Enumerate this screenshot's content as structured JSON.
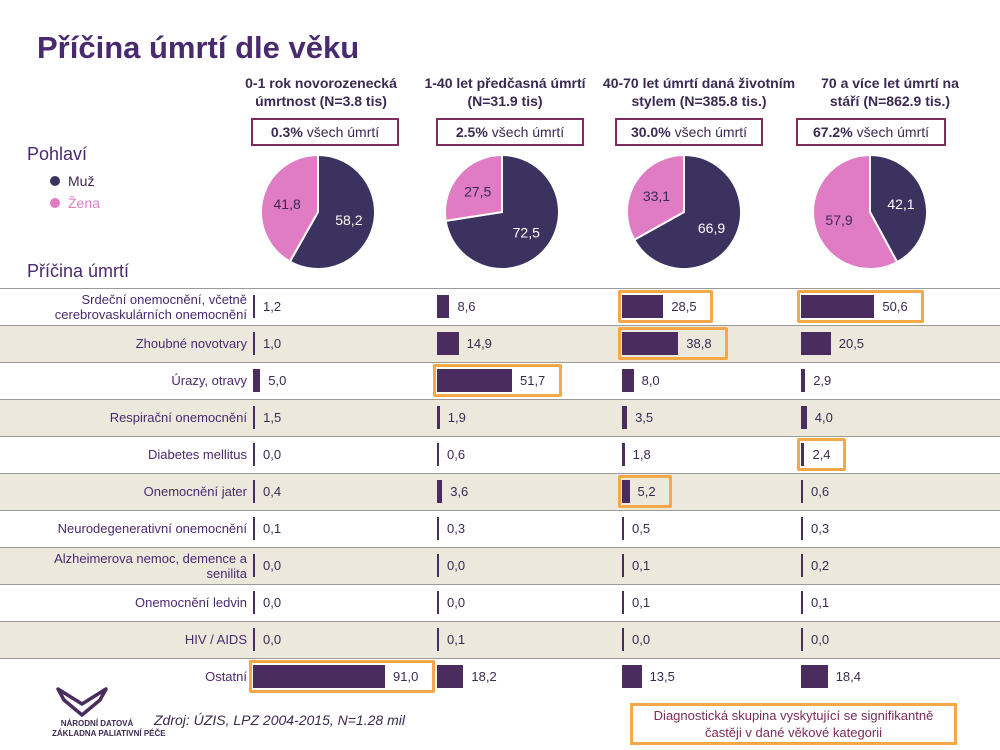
{
  "title": "Příčina úmrtí dle věku",
  "sections": {
    "sex": "Pohlaví",
    "cause": "Příčina úmrtí"
  },
  "legend": [
    {
      "label": "Muž",
      "color": "#3b3260"
    },
    {
      "label": "Žena",
      "color": "#e07cc4"
    }
  ],
  "groups": [
    {
      "head1": "0-1 rok novorozenecká",
      "head2": "úmrtnost (N=3.8 tis)",
      "share_pct": "0.3%",
      "share_text": "všech úmrtí"
    },
    {
      "head1": "1-40 let předčasná úmrtí",
      "head2": "(N=31.9 tis)",
      "share_pct": "2.5%",
      "share_text": "všech úmrtí"
    },
    {
      "head1": "40-70 let úmrtí daná životním",
      "head2": "stylem (N=385.8 tis.)",
      "share_pct": "30.0%",
      "share_text": "všech úmrtí"
    },
    {
      "head1": "70 a více let úmrtí na",
      "head2": "stáří (N=862.9 tis.)",
      "share_pct": "67.2%",
      "share_text": "všech úmrtí"
    }
  ],
  "chart_data": {
    "type": "bar",
    "pies": [
      {
        "group": "0-1 rok",
        "male": 58.2,
        "female": 41.8,
        "male_label": "58,2",
        "female_label": "41,8"
      },
      {
        "group": "1-40 let",
        "male": 72.5,
        "female": 27.5,
        "male_label": "72,5",
        "female_label": "27,5"
      },
      {
        "group": "40-70 let",
        "male": 66.9,
        "female": 33.1,
        "male_label": "66,9",
        "female_label": "33,1"
      },
      {
        "group": "70 a více let",
        "male": 42.1,
        "female": 57.9,
        "male_label": "42,1",
        "female_label": "57,9"
      }
    ],
    "categories": [
      "Srdeční onemocnění, včetně cerebrovaskulárních onemocnění",
      "Zhoubné novotvary",
      "Úrazy, otravy",
      "Respirační onemocnění",
      "Diabetes mellitus",
      "Onemocnění jater",
      "Neurodegenerativní onemocnění",
      "Alzheimerova nemoc, demence a senilita",
      "Onemocnění ledvin",
      "HIV / AIDS",
      "Ostatní"
    ],
    "category_lines": [
      [
        "Srdeční onemocnění, včetně",
        "cerebrovaskulárních onemocnění"
      ],
      [
        "Zhoubné novotvary"
      ],
      [
        "Úrazy, otravy"
      ],
      [
        "Respirační onemocnění"
      ],
      [
        "Diabetes mellitus"
      ],
      [
        "Onemocnění jater"
      ],
      [
        "Neurodegenerativní onemocnění"
      ],
      [
        "Alzheimerova nemoc, demence a",
        "senilita"
      ],
      [
        "Onemocnění ledvin"
      ],
      [
        "HIV / AIDS"
      ],
      [
        "Ostatní"
      ]
    ],
    "series": [
      {
        "values": [
          1.2,
          1.0,
          5.0,
          1.5,
          0.0,
          0.4,
          0.1,
          0.0,
          0.0,
          0.0,
          91.0
        ],
        "labels": [
          "1,2",
          "1,0",
          "5,0",
          "1,5",
          "0,0",
          "0,4",
          "0,1",
          "0,0",
          "0,0",
          "0,0",
          "91,0"
        ],
        "highlight": [
          10
        ]
      },
      {
        "values": [
          8.6,
          14.9,
          51.7,
          1.9,
          0.6,
          3.6,
          0.3,
          0.0,
          0.0,
          0.1,
          18.2
        ],
        "labels": [
          "8,6",
          "14,9",
          "51,7",
          "1,9",
          "0,6",
          "3,6",
          "0,3",
          "0,0",
          "0,0",
          "0,1",
          "18,2"
        ],
        "highlight": [
          2
        ]
      },
      {
        "values": [
          28.5,
          38.8,
          8.0,
          3.5,
          1.8,
          5.2,
          0.5,
          0.1,
          0.1,
          0.0,
          13.5
        ],
        "labels": [
          "28,5",
          "38,8",
          "8,0",
          "3,5",
          "1,8",
          "5,2",
          "0,5",
          "0,1",
          "0,1",
          "0,0",
          "13,5"
        ],
        "highlight": [
          0,
          1,
          5
        ]
      },
      {
        "values": [
          50.6,
          20.5,
          2.9,
          4.0,
          2.4,
          0.6,
          0.3,
          0.2,
          0.1,
          0.0,
          18.4
        ],
        "labels": [
          "50,6",
          "20,5",
          "2,9",
          "4,0",
          "2,4",
          "0,6",
          "0,3",
          "0,2",
          "0,1",
          "0,0",
          "18,4"
        ],
        "highlight": [
          0,
          4
        ]
      }
    ],
    "colors": {
      "bar": "#4a2d5e",
      "highlight": "#f5a847",
      "shade": "#ece8dc"
    }
  },
  "source": "Zdroj: ÚZIS, LPZ 2004-2015, N=1.28 mil",
  "note": "Diagnostická skupina vyskytující se signifikantně častěji v dané věkové kategorii",
  "logo": {
    "line1": "NÁRODNÍ DATOVÁ",
    "line2": "ZÁKLADNA PALIATIVNÍ PÉČE"
  }
}
